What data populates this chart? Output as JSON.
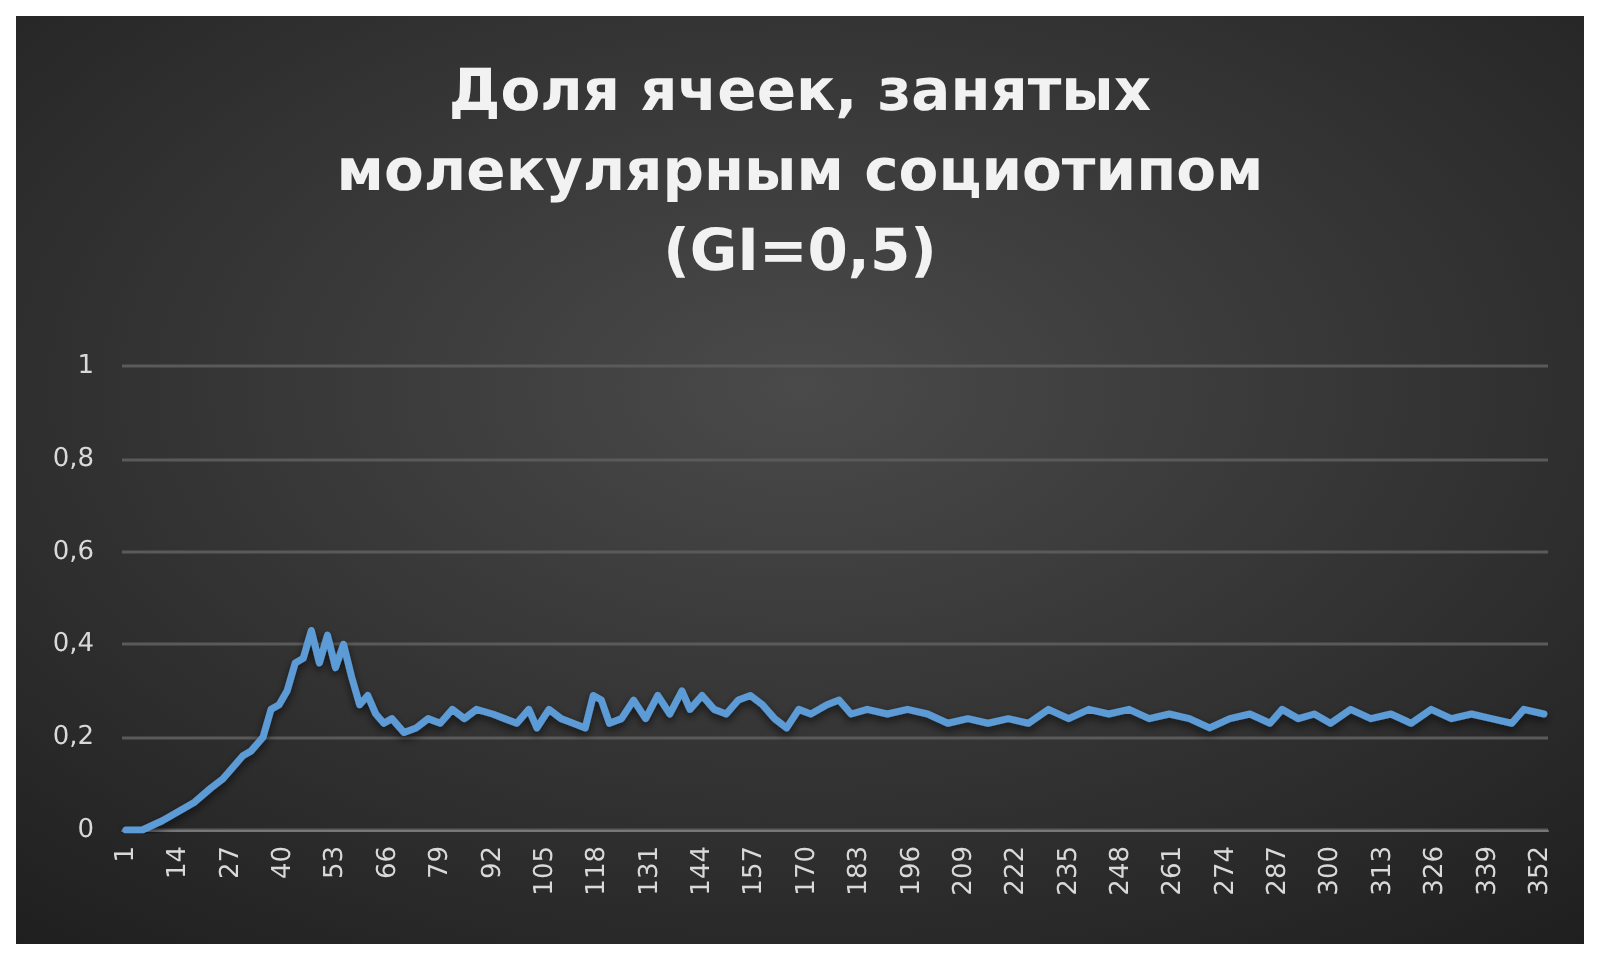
{
  "chart_data": {
    "type": "line",
    "title": "Доля ячеек, занятых\nмолекулярным социотипом\n(GI=0,5)",
    "series": [
      {
        "color": "#5b9bd5",
        "x": [
          1,
          5,
          10,
          14,
          18,
          22,
          25,
          27,
          30,
          32,
          35,
          37,
          39,
          41,
          43,
          45,
          47,
          49,
          51,
          53,
          55,
          57,
          59,
          61,
          63,
          65,
          67,
          70,
          73,
          76,
          79,
          82,
          85,
          88,
          92,
          95,
          98,
          101,
          103,
          106,
          109,
          112,
          115,
          117,
          119,
          121,
          124,
          127,
          130,
          133,
          136,
          139,
          141,
          144,
          147,
          150,
          153,
          156,
          159,
          162,
          165,
          168,
          171,
          175,
          178,
          181,
          185,
          190,
          195,
          200,
          205,
          210,
          215,
          220,
          225,
          230,
          235,
          240,
          245,
          250,
          255,
          260,
          265,
          270,
          275,
          280,
          285,
          288,
          292,
          296,
          300,
          305,
          310,
          315,
          320,
          325,
          330,
          335,
          340,
          345,
          348,
          353
        ],
        "values": [
          0,
          0,
          0.02,
          0.04,
          0.06,
          0.09,
          0.11,
          0.13,
          0.16,
          0.17,
          0.2,
          0.26,
          0.27,
          0.3,
          0.36,
          0.37,
          0.43,
          0.36,
          0.42,
          0.35,
          0.4,
          0.33,
          0.27,
          0.29,
          0.25,
          0.23,
          0.24,
          0.21,
          0.22,
          0.24,
          0.23,
          0.26,
          0.24,
          0.26,
          0.25,
          0.24,
          0.23,
          0.26,
          0.22,
          0.26,
          0.24,
          0.23,
          0.22,
          0.29,
          0.28,
          0.23,
          0.24,
          0.28,
          0.24,
          0.29,
          0.25,
          0.3,
          0.26,
          0.29,
          0.26,
          0.25,
          0.28,
          0.29,
          0.27,
          0.24,
          0.22,
          0.26,
          0.25,
          0.27,
          0.28,
          0.25,
          0.26,
          0.25,
          0.26,
          0.25,
          0.23,
          0.24,
          0.23,
          0.24,
          0.23,
          0.26,
          0.24,
          0.26,
          0.25,
          0.26,
          0.24,
          0.25,
          0.24,
          0.22,
          0.24,
          0.25,
          0.23,
          0.26,
          0.24,
          0.25,
          0.23,
          0.26,
          0.24,
          0.25,
          0.23,
          0.26,
          0.24,
          0.25,
          0.24,
          0.23,
          0.26,
          0.25
        ]
      }
    ],
    "xlim": [
      0,
      354
    ],
    "xticks": [
      1,
      14,
      27,
      40,
      53,
      66,
      79,
      92,
      105,
      118,
      131,
      144,
      157,
      170,
      183,
      196,
      209,
      222,
      235,
      248,
      261,
      274,
      287,
      300,
      313,
      326,
      339,
      352
    ],
    "ylim": [
      0,
      1
    ],
    "yticks": [
      {
        "value": 0,
        "label": "0"
      },
      {
        "value": 0.2,
        "label": "0,2"
      },
      {
        "value": 0.4,
        "label": "0,4"
      },
      {
        "value": 0.6,
        "label": "0,6"
      },
      {
        "value": 0.8,
        "label": "0,8"
      },
      {
        "value": 1,
        "label": "1"
      }
    ],
    "grid": "y",
    "marker": "none",
    "line_style": "solid"
  }
}
